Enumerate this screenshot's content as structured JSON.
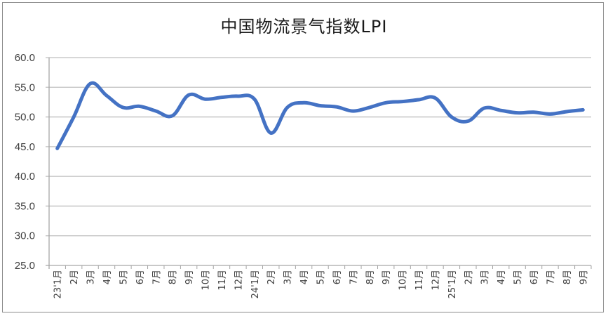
{
  "chart_data": {
    "type": "line",
    "title": "中国物流景气指数LPI",
    "xlabel": "",
    "ylabel": "",
    "ylim": [
      25.0,
      60.0
    ],
    "yticks": [
      "25.0",
      "30.0",
      "35.0",
      "40.0",
      "45.0",
      "50.0",
      "55.0",
      "60.0"
    ],
    "grid": true,
    "legend": "none",
    "categories": [
      "23'1月",
      "2月",
      "3月",
      "4月",
      "5月",
      "6月",
      "7月",
      "8月",
      "9月",
      "10月",
      "11月",
      "12月",
      "24'1月",
      "2月",
      "3月",
      "4月",
      "5月",
      "6月",
      "7月",
      "8月",
      "9月",
      "10月",
      "11月",
      "12月",
      "25'1月",
      "2月",
      "3月",
      "4月",
      "5月",
      "6月",
      "7月",
      "8月",
      "9月"
    ],
    "series": [
      {
        "name": "LPI",
        "color": "#4472C4",
        "values": [
          44.7,
          50.0,
          55.6,
          53.6,
          51.6,
          51.8,
          51.0,
          50.2,
          53.7,
          53.0,
          53.3,
          53.5,
          53.0,
          47.3,
          51.6,
          52.4,
          51.9,
          51.7,
          51.0,
          51.6,
          52.4,
          52.6,
          52.9,
          53.2,
          50.0,
          49.3,
          51.5,
          51.1,
          50.7,
          50.8,
          50.5,
          50.9,
          51.2
        ]
      }
    ]
  },
  "colors": {
    "line": "#4472C4",
    "grid": "#bfbfbf",
    "axis": "#a6a6a6",
    "frame": "#8c8c8c"
  }
}
